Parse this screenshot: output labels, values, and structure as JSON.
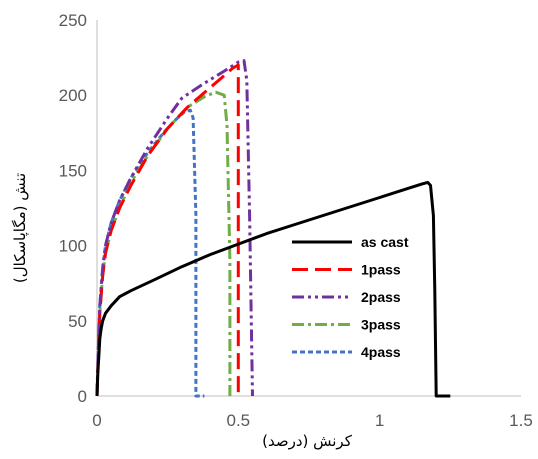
{
  "chart_data": {
    "type": "line",
    "xlabel": "کرنش (درصد)",
    "ylabel": "تنش (مگاپاسکال)",
    "xlim": [
      0,
      1.5
    ],
    "ylim": [
      0,
      250
    ],
    "xticks": [
      "0",
      "0.5",
      "1",
      "1.5"
    ],
    "yticks": [
      "0",
      "50",
      "100",
      "150",
      "200",
      "250"
    ],
    "grid": false,
    "legend_position": "right-center",
    "series": [
      {
        "name": "as cast",
        "color": "#000000",
        "dash": "solid",
        "x": [
          0,
          0.003,
          0.006,
          0.01,
          0.015,
          0.02,
          0.03,
          0.05,
          0.08,
          0.12,
          0.2,
          0.3,
          0.4,
          0.5,
          0.6,
          0.7,
          0.8,
          0.9,
          1.0,
          1.1,
          1.15,
          1.17,
          1.18,
          1.19,
          1.195,
          1.2,
          1.22,
          1.25
        ],
        "y": [
          0,
          15,
          25,
          38,
          45,
          50,
          55,
          60,
          66,
          70,
          77,
          86,
          94,
          101,
          108,
          114,
          120,
          126,
          132,
          138,
          141,
          142,
          140,
          120,
          70,
          0,
          0,
          0
        ]
      },
      {
        "name": "1pass",
        "color": "#ff0000",
        "dash": "long-dash",
        "x": [
          0,
          0.005,
          0.01,
          0.02,
          0.03,
          0.05,
          0.08,
          0.12,
          0.18,
          0.25,
          0.32,
          0.4,
          0.45,
          0.48,
          0.5,
          0.5,
          0.5
        ],
        "y": [
          0,
          30,
          55,
          80,
          95,
          110,
          125,
          140,
          160,
          178,
          192,
          205,
          213,
          218,
          220,
          110,
          0
        ]
      },
      {
        "name": "2pass",
        "color": "#7030a0",
        "dash": "dash-dot-dot",
        "x": [
          0,
          0.005,
          0.01,
          0.02,
          0.03,
          0.05,
          0.08,
          0.12,
          0.18,
          0.25,
          0.3,
          0.38,
          0.45,
          0.5,
          0.52,
          0.53,
          0.54,
          0.55
        ],
        "y": [
          0,
          35,
          60,
          85,
          100,
          115,
          130,
          145,
          165,
          185,
          198,
          208,
          216,
          222,
          223,
          210,
          120,
          0
        ]
      },
      {
        "name": "3pass",
        "color": "#70ad47",
        "dash": "dash-dot",
        "x": [
          0,
          0.005,
          0.01,
          0.02,
          0.03,
          0.05,
          0.08,
          0.12,
          0.18,
          0.25,
          0.32,
          0.38,
          0.42,
          0.45,
          0.46,
          0.47,
          0.47
        ],
        "y": [
          0,
          30,
          55,
          80,
          95,
          110,
          125,
          142,
          160,
          178,
          192,
          199,
          202,
          200,
          180,
          90,
          0
        ]
      },
      {
        "name": "4pass",
        "color": "#4472c4",
        "dash": "short-dash",
        "x": [
          0,
          0.005,
          0.01,
          0.02,
          0.03,
          0.05,
          0.08,
          0.12,
          0.18,
          0.24,
          0.28,
          0.31,
          0.33,
          0.34,
          0.35,
          0.35,
          0.38
        ],
        "y": [
          0,
          35,
          60,
          85,
          100,
          115,
          130,
          145,
          162,
          176,
          184,
          189,
          190,
          185,
          120,
          0,
          0
        ]
      }
    ]
  }
}
